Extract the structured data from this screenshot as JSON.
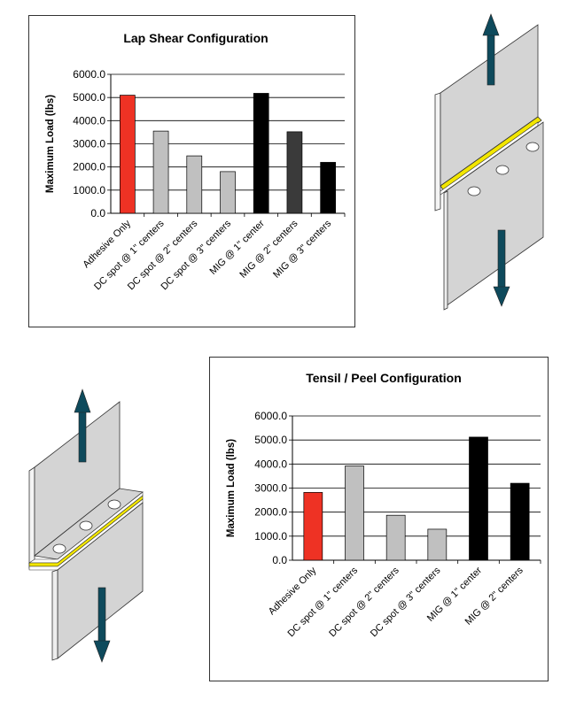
{
  "chart_data": [
    {
      "type": "bar",
      "title": "Lap Shear Configuration",
      "ylabel": "Maximum Load (lbs)",
      "xlabel": "",
      "ylim": [
        0,
        6000
      ],
      "yticks": [
        "0.0",
        "1000.0",
        "2000.0",
        "3000.0",
        "4000.0",
        "5000.0",
        "6000.0"
      ],
      "grid": true,
      "categories": [
        "Adhesive Only",
        "DC spot @ 1\" centers",
        "DC spot @ 2\" centers",
        "DC spot @ 3\" centers",
        "MIG @ 1\" center",
        "MIG @ 2\" centers",
        "MIG @ 3\" centers"
      ],
      "values": [
        5100,
        3550,
        2480,
        1800,
        5180,
        3520,
        2200
      ],
      "colors": [
        "#ee3224",
        "#c0c0c0",
        "#c0c0c0",
        "#c0c0c0",
        "#000000",
        "#3a3a3a",
        "#000000"
      ]
    },
    {
      "type": "bar",
      "title": "Tensil / Peel Configuration",
      "ylabel": "Maximum Load (lbs)",
      "xlabel": "",
      "ylim": [
        0,
        6000
      ],
      "yticks": [
        "0.0",
        "1000.0",
        "2000.0",
        "3000.0",
        "4000.0",
        "5000.0",
        "6000.0"
      ],
      "grid": true,
      "categories": [
        "Adhesive Only",
        "DC spot @ 1\" centers",
        "DC spot @ 2\" centers",
        "DC spot @ 3\" centers",
        "MIG @ 1\" center",
        "MIG @ 2\" centers"
      ],
      "values": [
        2820,
        3920,
        1870,
        1290,
        5120,
        3200
      ],
      "colors": [
        "#ee3224",
        "#c0c0c0",
        "#c0c0c0",
        "#c0c0c0",
        "#000000",
        "#000000"
      ]
    }
  ],
  "illustrations": {
    "lap_shear": {
      "icon": "lap-shear-specimen-icon",
      "plate_color": "#d4d4d4",
      "adhesive_color": "#f2e600",
      "arrow_color": "#0e4a5c"
    },
    "tensile_peel": {
      "icon": "tensile-peel-specimen-icon",
      "plate_color": "#d4d4d4",
      "adhesive_color": "#f2e600",
      "arrow_color": "#0e4a5c"
    }
  }
}
